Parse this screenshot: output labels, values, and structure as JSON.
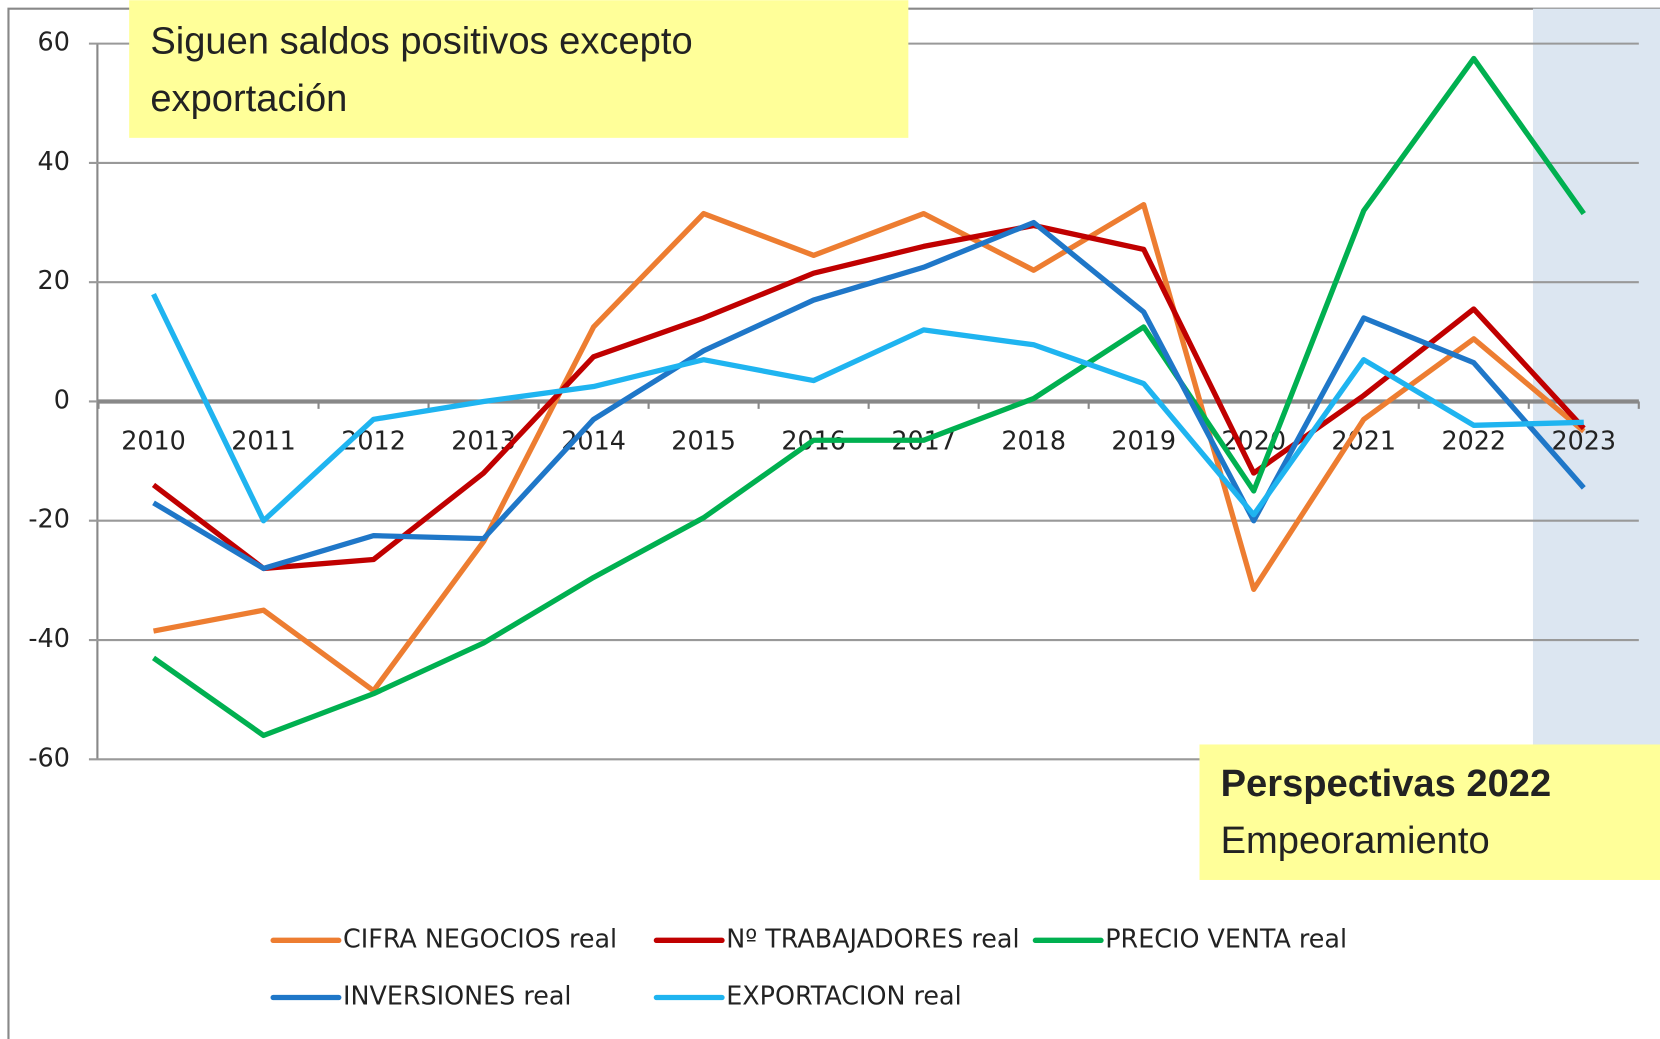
{
  "chart_data": {
    "type": "line",
    "categories": [
      "2010",
      "2011",
      "2012",
      "2013",
      "2014",
      "2015",
      "2016",
      "2017",
      "2018",
      "2019",
      "2020",
      "2021",
      "2022",
      "2023"
    ],
    "series": [
      {
        "name": "CIFRA NEGOCIOS real",
        "color": "#ED7D31",
        "values": [
          -38.5,
          -35,
          -48.5,
          -23.5,
          12.5,
          31.5,
          24.5,
          31.5,
          22,
          33,
          -31.5,
          -3,
          10.5,
          -5
        ]
      },
      {
        "name": "Nº TRABAJADORES real",
        "color": "#C00000",
        "values": [
          -14,
          -28,
          -26.5,
          -12,
          7.5,
          14,
          21.5,
          26,
          29.5,
          25.5,
          -12,
          1,
          15.5,
          -4.5
        ]
      },
      {
        "name": "PRECIO VENTA real",
        "color": "#00B050",
        "values": [
          -43,
          -56,
          -49,
          -40.5,
          -29.5,
          -19.5,
          -6.5,
          -6.5,
          0.5,
          12.5,
          -15,
          32,
          57.5,
          31.5
        ]
      },
      {
        "name": "INVERSIONES real",
        "color": "#1F77C8",
        "values": [
          -17,
          -28,
          -22.5,
          -23,
          -3,
          8.5,
          17,
          22.5,
          30,
          15,
          -20,
          14,
          6.5,
          -14.5
        ]
      },
      {
        "name": "EXPORTACION real",
        "color": "#1FB4F0",
        "values": [
          18,
          -20,
          -3,
          0,
          2.5,
          7,
          3.5,
          12,
          9.5,
          3,
          -19,
          7,
          -4,
          -3.5
        ]
      }
    ],
    "ylim": [
      -60,
      60
    ],
    "yticks": [
      -60,
      -40,
      -20,
      0,
      20,
      40,
      60
    ],
    "grid": true,
    "annotations": {
      "top": "Siguen saldos positivos excepto exportación",
      "box_title": "Perspectivas 2022",
      "box_text": "Empeoramiento"
    }
  }
}
